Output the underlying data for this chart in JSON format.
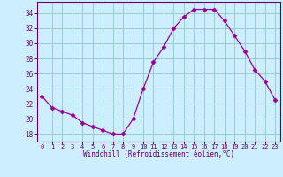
{
  "x": [
    0,
    1,
    2,
    3,
    4,
    5,
    6,
    7,
    8,
    9,
    10,
    11,
    12,
    13,
    14,
    15,
    16,
    17,
    18,
    19,
    20,
    21,
    22,
    23
  ],
  "y": [
    23.0,
    21.5,
    21.0,
    20.5,
    19.5,
    19.0,
    18.5,
    18.0,
    18.0,
    20.0,
    24.0,
    27.5,
    29.5,
    32.0,
    33.5,
    34.5,
    34.5,
    34.5,
    33.0,
    31.0,
    29.0,
    26.5,
    25.0,
    22.5
  ],
  "line_color": "#990099",
  "marker": "D",
  "marker_size": 2.5,
  "bg_color": "#cceeff",
  "grid_color": "#99cccc",
  "xlabel": "Windchill (Refroidissement éolien,°C)",
  "xlabel_color": "#660066",
  "tick_color": "#660066",
  "axis_color": "#660066",
  "ylim": [
    17.0,
    35.5
  ],
  "yticks": [
    18,
    20,
    22,
    24,
    26,
    28,
    30,
    32,
    34
  ],
  "xlim": [
    -0.5,
    23.5
  ],
  "xticks": [
    0,
    1,
    2,
    3,
    4,
    5,
    6,
    7,
    8,
    9,
    10,
    11,
    12,
    13,
    14,
    15,
    16,
    17,
    18,
    19,
    20,
    21,
    22,
    23
  ],
  "xtick_labels": [
    "0",
    "1",
    "2",
    "3",
    "4",
    "5",
    "6",
    "7",
    "8",
    "9",
    "10",
    "11",
    "12",
    "13",
    "14",
    "15",
    "16",
    "17",
    "18",
    "19",
    "20",
    "21",
    "22",
    "23"
  ]
}
